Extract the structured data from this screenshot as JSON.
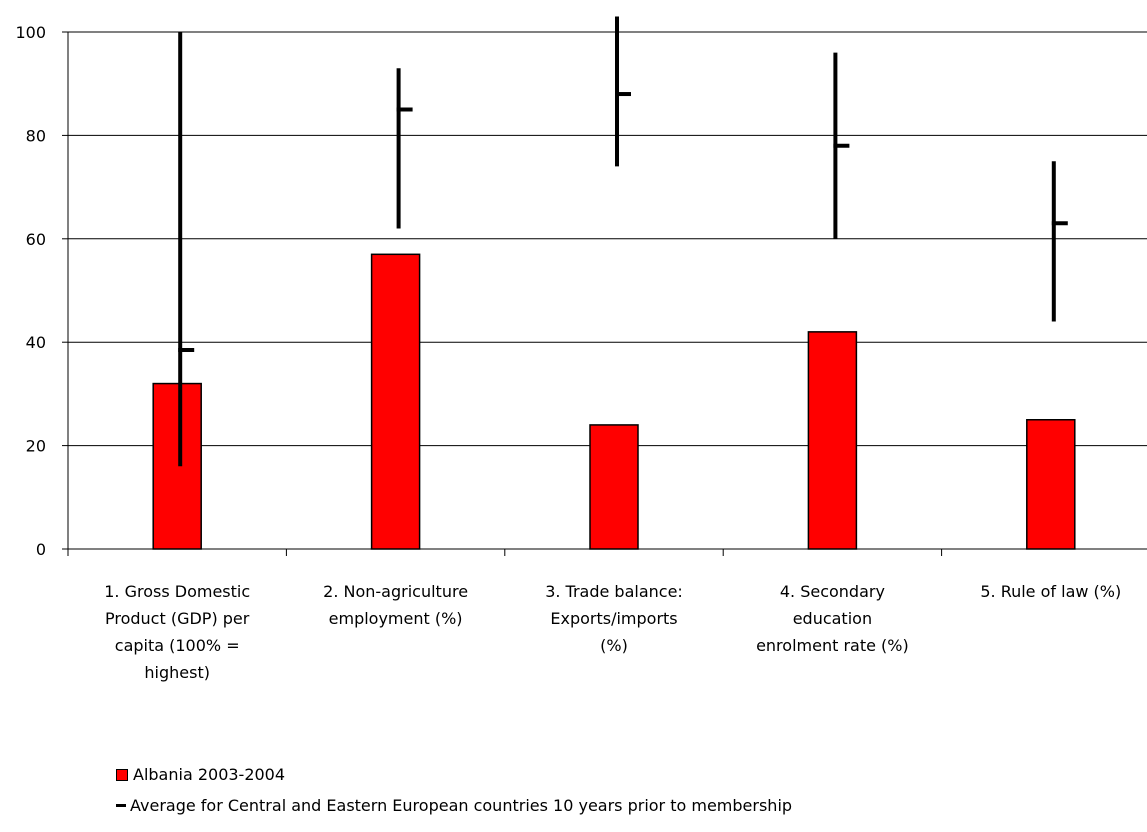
{
  "chart_data": {
    "type": "bar",
    "categories": [
      "1. Gross Domestic Product (GDP) per capita (100% = highest)",
      "2. Non-agriculture employment (%)",
      "3. Trade balance: Exports/imports (%)",
      "4. Secondary education enrolment rate (%)",
      "5. Rule of law (%)"
    ],
    "category_lines": [
      [
        "1. Gross Domestic",
        "Product (GDP) per",
        "capita (100% =",
        "highest)"
      ],
      [
        "2. Non-agriculture",
        "employment (%)"
      ],
      [
        "3. Trade balance:",
        "Exports/imports",
        "(%)"
      ],
      [
        "4. Secondary",
        "education",
        "enrolment rate (%)"
      ],
      [
        "5. Rule of law (%)"
      ]
    ],
    "series": [
      {
        "name": "Albania 2003-2004",
        "type": "bar",
        "color": "#ff0000",
        "values": [
          32,
          57,
          24,
          42,
          25
        ]
      },
      {
        "name": "Average for Central and Eastern European countries 10 years prior to membership",
        "type": "high-low-average",
        "color": "#000000",
        "average": [
          38.5,
          85,
          88,
          78,
          63
        ],
        "low": [
          16,
          62,
          74,
          60,
          44
        ],
        "high": [
          100,
          93,
          103,
          96,
          75
        ]
      }
    ],
    "yticks": [
      "0",
      "20",
      "40",
      "60",
      "80",
      "100"
    ],
    "ylim": [
      0,
      100
    ],
    "grid": true,
    "legend_position": "bottom-left"
  },
  "legend": {
    "bar_label": "Albania 2003-2004",
    "avg_label": "Average for Central and Eastern European countries 10 years prior to membership"
  }
}
